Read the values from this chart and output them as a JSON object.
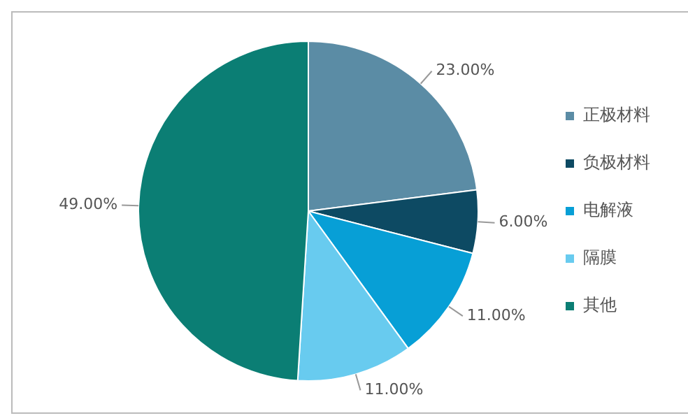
{
  "chart_data": {
    "type": "pie",
    "categories": [
      "正极材料",
      "负极材料",
      "电解液",
      "隔膜",
      "其他"
    ],
    "values": [
      23,
      6,
      11,
      11,
      49
    ],
    "colors": [
      "#5b8ca5",
      "#0d4a63",
      "#079fd6",
      "#68cbef",
      "#0b7e74"
    ],
    "value_labels": [
      "23.00%",
      "6.00%",
      "11.00%",
      "11.00%",
      "49.00%"
    ],
    "legend": "right"
  }
}
